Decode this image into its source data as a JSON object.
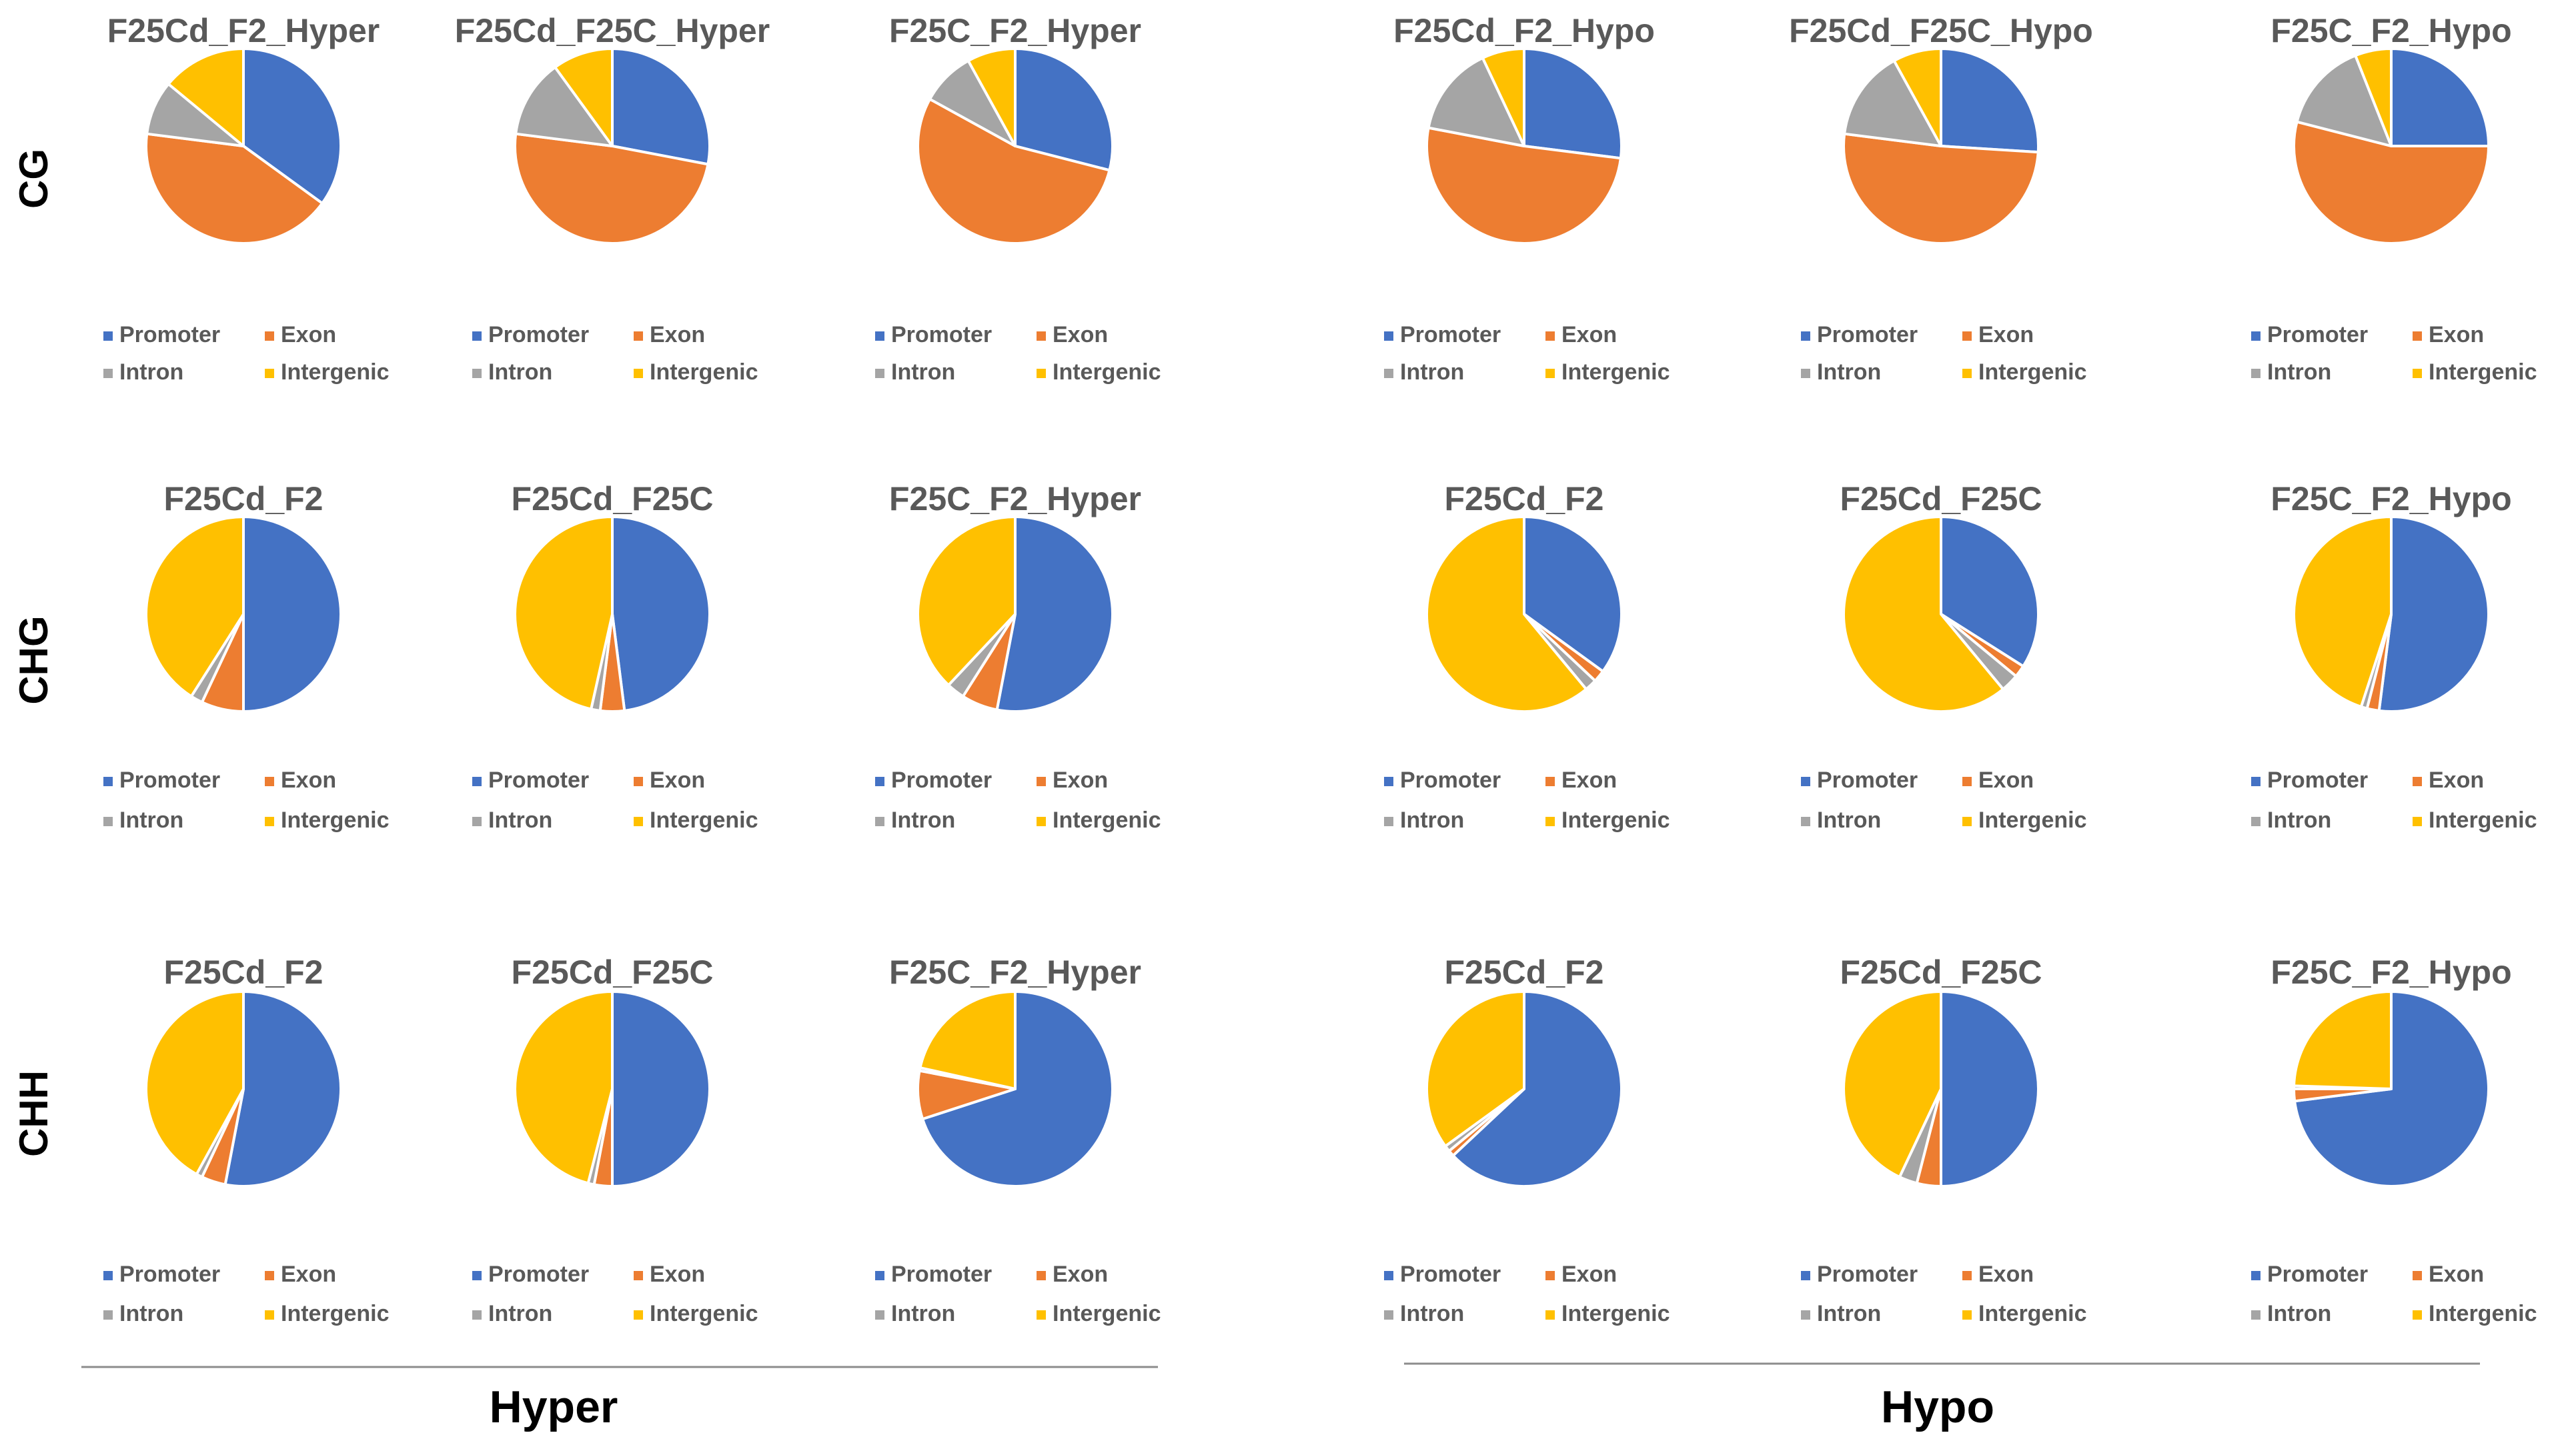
{
  "chart_data": {
    "type": "pie",
    "layout": "3 rows x 6 columns of pie charts",
    "colors": {
      "Promoter": "#4472C4",
      "Exon": "#ED7D31",
      "Intron": "#A5A5A5",
      "Intergenic": "#FFC000"
    },
    "legend_labels": {
      "Promoter": "Promoter",
      "Exon": "Exon",
      "Intron": "Intron",
      "Intergenic": "Intergenic"
    },
    "category_order": [
      "Promoter",
      "Exon",
      "Intron",
      "Intergenic"
    ],
    "row_labels": [
      "CG",
      "CHG",
      "CHH"
    ],
    "group_labels": [
      "Hyper",
      "Hypo"
    ],
    "charts": [
      {
        "row": 0,
        "col": 0,
        "context": "CG",
        "group": "Hyper",
        "title": "F25Cd_F2_Hyper",
        "values": {
          "Promoter": 35,
          "Exon": 42,
          "Intron": 9,
          "Intergenic": 14
        }
      },
      {
        "row": 0,
        "col": 1,
        "context": "CG",
        "group": "Hyper",
        "title": "F25Cd_F25C_Hyper",
        "values": {
          "Promoter": 28,
          "Exon": 49,
          "Intron": 13,
          "Intergenic": 10
        }
      },
      {
        "row": 0,
        "col": 2,
        "context": "CG",
        "group": "Hyper",
        "title": "F25C_F2_Hyper",
        "values": {
          "Promoter": 29,
          "Exon": 54,
          "Intron": 9,
          "Intergenic": 8
        }
      },
      {
        "row": 0,
        "col": 3,
        "context": "CG",
        "group": "Hypo",
        "title": "F25Cd_F2_Hypo",
        "values": {
          "Promoter": 27,
          "Exon": 51,
          "Intron": 15,
          "Intergenic": 7
        }
      },
      {
        "row": 0,
        "col": 4,
        "context": "CG",
        "group": "Hypo",
        "title": "F25Cd_F25C_Hypo",
        "values": {
          "Promoter": 26,
          "Exon": 51,
          "Intron": 15,
          "Intergenic": 8
        }
      },
      {
        "row": 0,
        "col": 5,
        "context": "CG",
        "group": "Hypo",
        "title": "F25C_F2_Hypo",
        "values": {
          "Promoter": 25,
          "Exon": 54,
          "Intron": 15,
          "Intergenic": 6
        }
      },
      {
        "row": 1,
        "col": 0,
        "context": "CHG",
        "group": "Hyper",
        "title": "F25Cd_F2",
        "values": {
          "Promoter": 50,
          "Exon": 7,
          "Intron": 2,
          "Intergenic": 41
        }
      },
      {
        "row": 1,
        "col": 1,
        "context": "CHG",
        "group": "Hyper",
        "title": "F25Cd_F25C",
        "values": {
          "Promoter": 48,
          "Exon": 4,
          "Intron": 1.5,
          "Intergenic": 46.5
        }
      },
      {
        "row": 1,
        "col": 2,
        "context": "CHG",
        "group": "Hyper",
        "title": "F25C_F2_Hyper",
        "values": {
          "Promoter": 53,
          "Exon": 6,
          "Intron": 3,
          "Intergenic": 38
        }
      },
      {
        "row": 1,
        "col": 3,
        "context": "CHG",
        "group": "Hypo",
        "title": "F25Cd_F2",
        "values": {
          "Promoter": 35,
          "Exon": 2,
          "Intron": 2,
          "Intergenic": 61
        }
      },
      {
        "row": 1,
        "col": 4,
        "context": "CHG",
        "group": "Hypo",
        "title": "F25Cd_F25C",
        "values": {
          "Promoter": 34,
          "Exon": 2,
          "Intron": 3,
          "Intergenic": 61
        }
      },
      {
        "row": 1,
        "col": 5,
        "context": "CHG",
        "group": "Hypo",
        "title": "F25C_F2_Hypo",
        "values": {
          "Promoter": 52,
          "Exon": 2,
          "Intron": 1,
          "Intergenic": 45
        }
      },
      {
        "row": 2,
        "col": 0,
        "context": "CHH",
        "group": "Hyper",
        "title": "F25Cd_F2",
        "values": {
          "Promoter": 53,
          "Exon": 4,
          "Intron": 1,
          "Intergenic": 42
        }
      },
      {
        "row": 2,
        "col": 1,
        "context": "CHH",
        "group": "Hyper",
        "title": "F25Cd_F25C",
        "values": {
          "Promoter": 50,
          "Exon": 3,
          "Intron": 1,
          "Intergenic": 46
        }
      },
      {
        "row": 2,
        "col": 2,
        "context": "CHH",
        "group": "Hyper",
        "title": "F25C_F2_Hyper",
        "values": {
          "Promoter": 70,
          "Exon": 8,
          "Intron": 0.5,
          "Intergenic": 21.5
        }
      },
      {
        "row": 2,
        "col": 3,
        "context": "CHH",
        "group": "Hypo",
        "title": "F25Cd_F2",
        "values": {
          "Promoter": 63,
          "Exon": 1,
          "Intron": 1,
          "Intergenic": 35
        }
      },
      {
        "row": 2,
        "col": 4,
        "context": "CHH",
        "group": "Hypo",
        "title": "F25Cd_F25C",
        "values": {
          "Promoter": 50,
          "Exon": 4,
          "Intron": 3,
          "Intergenic": 43
        }
      },
      {
        "row": 2,
        "col": 5,
        "context": "CHH",
        "group": "Hypo",
        "title": "F25C_F2_Hypo",
        "values": {
          "Promoter": 73,
          "Exon": 2,
          "Intron": 0.5,
          "Intergenic": 24.5
        }
      }
    ]
  }
}
